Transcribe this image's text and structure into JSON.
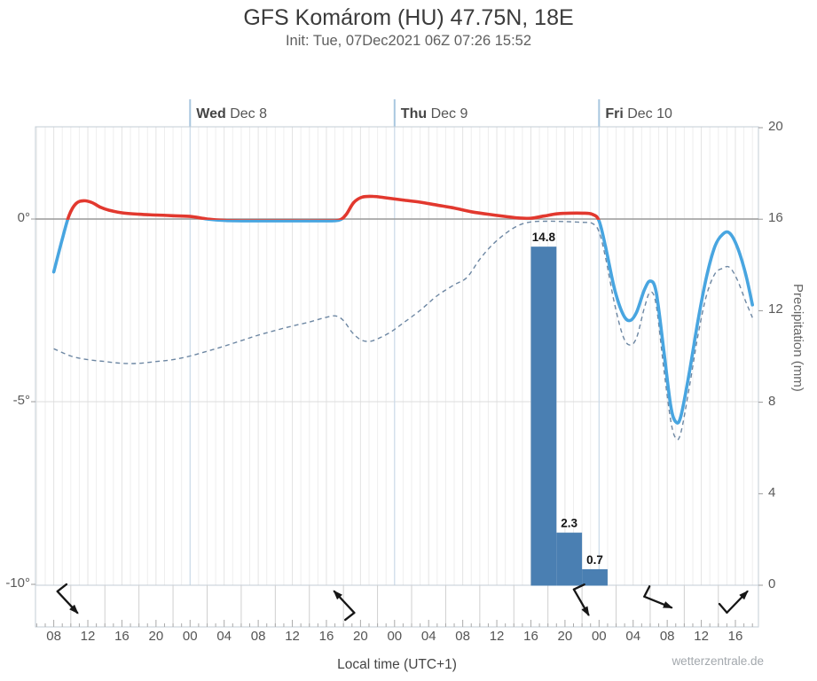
{
  "header": {
    "title": "GFS Komárom (HU) 47.75N, 18E",
    "subtitle": "Init: Tue, 07Dec2021 06Z 07:26 15:52"
  },
  "footer": {
    "xlabel": "Local time (UTC+1)",
    "watermark": "wetterzentrale.de"
  },
  "chart_data": {
    "type": "line",
    "title": "GFS Komárom (HU) 47.75N, 18E",
    "x_axis": {
      "description": "hours, t=0 equals 08:00 local Tue 07 Dec 2021, labels every 4 h",
      "hour_labels": [
        "08",
        "12",
        "16",
        "20",
        "00",
        "04",
        "08",
        "12",
        "16",
        "20",
        "00",
        "04",
        "08",
        "12",
        "16",
        "20",
        "00",
        "04",
        "08",
        "12",
        "16"
      ],
      "hour_label_step_hours": 4,
      "day_markers": [
        {
          "t": 16,
          "day": "Wed",
          "date": "Dec 8"
        },
        {
          "t": 40,
          "day": "Thu",
          "date": "Dec 9"
        },
        {
          "t": 64,
          "day": "Fri",
          "date": "Dec 10"
        }
      ]
    },
    "y_left": {
      "unit": "°C",
      "range_top": 2.5,
      "range_bottom": -10,
      "ticks": [
        {
          "value": 0,
          "label": "0°"
        },
        {
          "value": -5,
          "label": "-5°"
        },
        {
          "value": -10,
          "label": "-10°"
        }
      ]
    },
    "y_right": {
      "title": "Precipitation (mm)",
      "range": [
        0,
        20
      ],
      "ticks": [
        20,
        16,
        12,
        8,
        4,
        0
      ]
    },
    "grid": {
      "vertical_every_hours": 1,
      "day_line_color": "#c9d9e8",
      "zero_line_color": "#999999"
    },
    "series": [
      {
        "name": "temperature-2m",
        "style": "solid",
        "width": 3.6,
        "color_above_zero": "#e2382e",
        "color_below_zero": "#48a5e0",
        "points": [
          [
            0,
            -1.45
          ],
          [
            1,
            -0.55
          ],
          [
            1.8,
            0.1
          ],
          [
            2.6,
            0.42
          ],
          [
            3.5,
            0.5
          ],
          [
            4.5,
            0.45
          ],
          [
            5.5,
            0.32
          ],
          [
            6.5,
            0.24
          ],
          [
            8,
            0.17
          ],
          [
            10,
            0.13
          ],
          [
            12,
            0.11
          ],
          [
            14,
            0.09
          ],
          [
            16,
            0.07
          ],
          [
            18,
            0.0
          ],
          [
            20,
            -0.04
          ],
          [
            24,
            -0.05
          ],
          [
            28,
            -0.05
          ],
          [
            32,
            -0.05
          ],
          [
            33.5,
            -0.03
          ],
          [
            34.3,
            0.12
          ],
          [
            35.2,
            0.45
          ],
          [
            36.2,
            0.6
          ],
          [
            37.5,
            0.62
          ],
          [
            39,
            0.58
          ],
          [
            41,
            0.52
          ],
          [
            43,
            0.46
          ],
          [
            45,
            0.38
          ],
          [
            47,
            0.3
          ],
          [
            49,
            0.2
          ],
          [
            51,
            0.13
          ],
          [
            53,
            0.07
          ],
          [
            54.5,
            0.03
          ],
          [
            56,
            0.02
          ],
          [
            57.5,
            0.08
          ],
          [
            59,
            0.14
          ],
          [
            60.5,
            0.16
          ],
          [
            62,
            0.16
          ],
          [
            63.2,
            0.13
          ],
          [
            64,
            -0.05
          ],
          [
            64.8,
            -0.8
          ],
          [
            65.8,
            -1.9
          ],
          [
            66.8,
            -2.6
          ],
          [
            67.6,
            -2.78
          ],
          [
            68.4,
            -2.55
          ],
          [
            69.3,
            -1.95
          ],
          [
            70,
            -1.7
          ],
          [
            70.7,
            -2.0
          ],
          [
            71.6,
            -3.6
          ],
          [
            72.4,
            -5.1
          ],
          [
            73,
            -5.55
          ],
          [
            73.6,
            -5.4
          ],
          [
            74.6,
            -4.2
          ],
          [
            75.6,
            -2.8
          ],
          [
            76.6,
            -1.6
          ],
          [
            77.6,
            -0.75
          ],
          [
            78.5,
            -0.42
          ],
          [
            79.3,
            -0.38
          ],
          [
            80.2,
            -0.75
          ],
          [
            81.2,
            -1.5
          ],
          [
            82,
            -2.35
          ]
        ]
      },
      {
        "name": "dew-point",
        "style": "dashed",
        "width": 1.4,
        "color": "#6d87a3",
        "points": [
          [
            0,
            -3.55
          ],
          [
            2,
            -3.75
          ],
          [
            4,
            -3.85
          ],
          [
            6,
            -3.9
          ],
          [
            8,
            -3.95
          ],
          [
            10,
            -3.95
          ],
          [
            12,
            -3.9
          ],
          [
            14,
            -3.85
          ],
          [
            16,
            -3.75
          ],
          [
            18,
            -3.62
          ],
          [
            20,
            -3.48
          ],
          [
            22,
            -3.33
          ],
          [
            24,
            -3.18
          ],
          [
            26,
            -3.05
          ],
          [
            28,
            -2.93
          ],
          [
            30,
            -2.82
          ],
          [
            31.5,
            -2.72
          ],
          [
            33,
            -2.65
          ],
          [
            34,
            -2.78
          ],
          [
            35,
            -3.1
          ],
          [
            36,
            -3.3
          ],
          [
            37,
            -3.35
          ],
          [
            38,
            -3.28
          ],
          [
            39.5,
            -3.1
          ],
          [
            41,
            -2.85
          ],
          [
            43,
            -2.5
          ],
          [
            45,
            -2.1
          ],
          [
            47,
            -1.8
          ],
          [
            48.5,
            -1.6
          ],
          [
            50,
            -1.1
          ],
          [
            51.5,
            -0.7
          ],
          [
            53,
            -0.4
          ],
          [
            54.5,
            -0.18
          ],
          [
            56,
            -0.08
          ],
          [
            58,
            -0.06
          ],
          [
            60,
            -0.07
          ],
          [
            62,
            -0.09
          ],
          [
            63.2,
            -0.12
          ],
          [
            64,
            -0.35
          ],
          [
            64.8,
            -1.1
          ],
          [
            65.8,
            -2.3
          ],
          [
            66.8,
            -3.2
          ],
          [
            67.6,
            -3.45
          ],
          [
            68.4,
            -3.25
          ],
          [
            69.3,
            -2.45
          ],
          [
            70,
            -2.0
          ],
          [
            70.7,
            -2.35
          ],
          [
            71.6,
            -4.1
          ],
          [
            72.4,
            -5.5
          ],
          [
            73,
            -6.0
          ],
          [
            73.6,
            -5.85
          ],
          [
            74.6,
            -4.6
          ],
          [
            75.6,
            -3.2
          ],
          [
            76.6,
            -2.1
          ],
          [
            77.6,
            -1.5
          ],
          [
            78.5,
            -1.35
          ],
          [
            79.3,
            -1.32
          ],
          [
            80.2,
            -1.65
          ],
          [
            81.2,
            -2.25
          ],
          [
            82,
            -2.7
          ]
        ]
      }
    ],
    "precipitation_bars": {
      "color": "#4a7fb2",
      "bin_hours": 3,
      "bars": [
        {
          "t_start": 56,
          "t_end": 59,
          "value": 14.8,
          "label": "14.8"
        },
        {
          "t_start": 59,
          "t_end": 62,
          "value": 2.3,
          "label": "2.3"
        },
        {
          "t_start": 62,
          "t_end": 65,
          "value": 0.7,
          "label": "0.7"
        }
      ]
    },
    "wind_arrows": [
      {
        "t": 1.6,
        "to_bearing_deg": 137
      },
      {
        "t": 34.1,
        "to_bearing_deg": 317
      },
      {
        "t": 61.9,
        "to_bearing_deg": 150
      },
      {
        "t": 70.9,
        "to_bearing_deg": 112
      },
      {
        "t": 80.2,
        "to_bearing_deg": 44
      }
    ]
  }
}
